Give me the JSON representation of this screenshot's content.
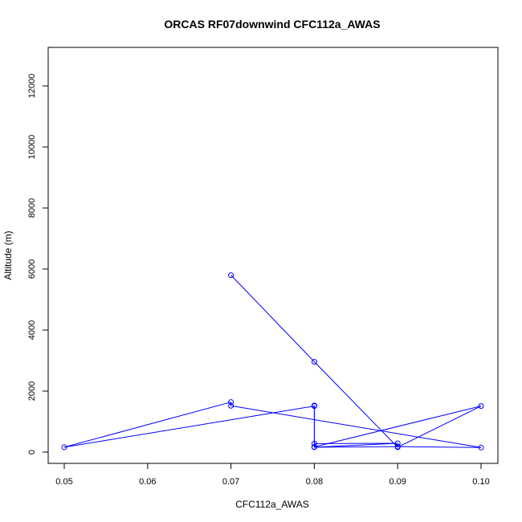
{
  "chart_data": {
    "type": "line",
    "title": "ORCAS RF07downwind CFC112a_AWAS",
    "xlabel": "CFC112a_AWAS",
    "ylabel": "Altitude (m)",
    "xlim": [
      0.05,
      0.1
    ],
    "ylim": [
      0,
      12000
    ],
    "xticks": [
      "0.05",
      "0.06",
      "0.07",
      "0.08",
      "0.09",
      "0.10"
    ],
    "yticks": [
      "0",
      "2000",
      "4000",
      "6000",
      "8000",
      "10000",
      "12000"
    ],
    "grid": false,
    "series": [
      {
        "color": "#0000ff",
        "marker": "open-circle",
        "points": [
          [
            0.07,
            5800
          ],
          [
            0.08,
            2960
          ],
          [
            0.09,
            160
          ],
          [
            0.1,
            1510
          ],
          [
            0.08,
            170
          ],
          [
            0.08,
            1510
          ],
          [
            0.05,
            160
          ],
          [
            0.07,
            1640
          ],
          [
            0.07,
            1520
          ],
          [
            0.1,
            150
          ],
          [
            0.09,
            180
          ],
          [
            0.08,
            160
          ],
          [
            0.09,
            290
          ],
          [
            0.08,
            280
          ],
          [
            0.08,
            1530
          ]
        ]
      }
    ]
  }
}
